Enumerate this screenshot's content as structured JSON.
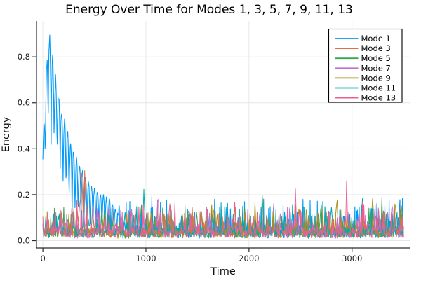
{
  "chart_data": {
    "type": "line",
    "title": "Energy Over Time for Modes 1, 3, 5, 7, 9, 11, 13",
    "xlabel": "Time",
    "ylabel": "Energy",
    "xlim": [
      -62,
      3560
    ],
    "ylim": [
      -0.032,
      0.956
    ],
    "t_range": [
      0,
      3500
    ],
    "xticks": [
      0,
      1000,
      2000,
      3000
    ],
    "xtick_labels": [
      "0",
      "1000",
      "2000",
      "3000"
    ],
    "yticks": [
      0.0,
      0.2,
      0.4,
      0.6,
      0.8
    ],
    "ytick_labels": [
      "0.0",
      "0.2",
      "0.4",
      "0.6",
      "0.8"
    ],
    "grid": true,
    "legend_position": "top-right",
    "background": "#ffffff",
    "grid_color": "#e6e6e6",
    "axis_color": "#2a2a2a",
    "description": "Seven noisy energy time-series. Mode 1 starts near 0.93 and decays with a ~29-unit-period oscillation into a 0-0.1 noise band by t~800; all other modes fluctuate in a 0-0.12 band with occasional spikes (listed as events [t, peak, width]).",
    "series": [
      {
        "name": "Mode 1",
        "color": "#009AFA",
        "seed": 101,
        "noise_amp": 0.1,
        "oscillation": {
          "peak": 0.93,
          "peak_time": 66,
          "period": 29,
          "upper_envelope": {
            "offset": 0.13,
            "amp": 1.05,
            "tau": 220
          },
          "lower_envelope": {
            "start": 0.47,
            "t0": 60,
            "tau": 170,
            "power": 1.4
          },
          "fade_start": 650,
          "fade_end": 950
        },
        "events": [
          [
            1050,
            0.11,
            8
          ],
          [
            1600,
            0.1,
            8
          ],
          [
            2500,
            0.1,
            8
          ]
        ]
      },
      {
        "name": "Mode 3",
        "color": "#E26E47",
        "seed": 202,
        "noise_amp": 0.085,
        "events": [
          [
            330,
            0.17,
            12
          ],
          [
            370,
            0.3,
            16
          ],
          [
            408,
            0.22,
            11
          ],
          [
            1450,
            0.12,
            9
          ],
          [
            2480,
            0.11,
            8
          ],
          [
            3060,
            0.1,
            8
          ]
        ]
      },
      {
        "name": "Mode 5",
        "color": "#3DA44E",
        "seed": 303,
        "noise_amp": 0.08,
        "events": [
          [
            640,
            0.11,
            8
          ],
          [
            950,
            0.13,
            9
          ],
          [
            2130,
            0.16,
            11
          ],
          [
            2700,
            0.15,
            10
          ],
          [
            3290,
            0.12,
            8
          ]
        ]
      },
      {
        "name": "Mode 7",
        "color": "#C271D2",
        "seed": 404,
        "noise_amp": 0.085,
        "events": [
          [
            640,
            0.15,
            8
          ],
          [
            860,
            0.13,
            8
          ],
          [
            1120,
            0.22,
            10
          ],
          [
            1165,
            0.15,
            8
          ],
          [
            2240,
            0.12,
            8
          ],
          [
            3390,
            0.15,
            8
          ]
        ]
      },
      {
        "name": "Mode 9",
        "color": "#AC8E18",
        "seed": 505,
        "noise_amp": 0.085,
        "events": [
          [
            1210,
            0.12,
            8
          ],
          [
            1650,
            0.13,
            8
          ],
          [
            2060,
            0.13,
            8
          ],
          [
            2850,
            0.17,
            10
          ],
          [
            3200,
            0.17,
            10
          ],
          [
            3420,
            0.14,
            8
          ]
        ]
      },
      {
        "name": "Mode 11",
        "color": "#00AAAE",
        "seed": 606,
        "noise_amp": 0.085,
        "events": [
          [
            150,
            0.1,
            8
          ],
          [
            800,
            0.15,
            8
          ],
          [
            980,
            0.19,
            9
          ],
          [
            2350,
            0.14,
            8
          ],
          [
            2800,
            0.16,
            9
          ],
          [
            3100,
            0.15,
            8
          ]
        ]
      },
      {
        "name": "Mode 13",
        "color": "#ED5E93",
        "seed": 707,
        "noise_amp": 0.095,
        "events": [
          [
            1230,
            0.13,
            8
          ],
          [
            1850,
            0.13,
            8
          ],
          [
            2450,
            0.17,
            9
          ],
          [
            2950,
            0.17,
            9
          ],
          [
            3480,
            0.11,
            6
          ]
        ]
      }
    ]
  }
}
